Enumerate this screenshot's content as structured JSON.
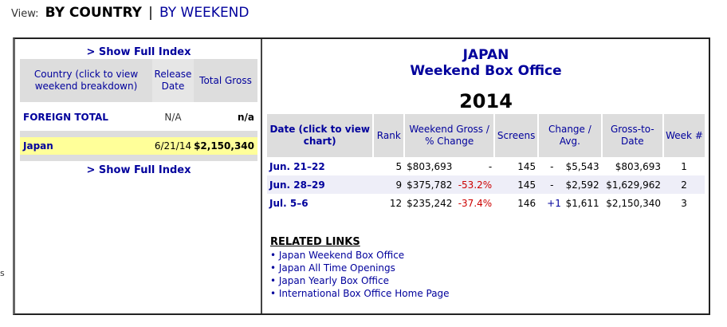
{
  "nav": {
    "view_label": "View:",
    "current": "BY COUNTRY",
    "separator": "|",
    "alternate": "BY WEEKEND"
  },
  "edge_text": "s",
  "left": {
    "show_index": "> Show Full Index",
    "headers": {
      "country": "Country (click to view weekend breakdown)",
      "release": "Release Date",
      "total": "Total Gross"
    },
    "foreign_total": {
      "country": "FOREIGN TOTAL",
      "release": "N/A",
      "total": "n/a"
    },
    "rows": [
      {
        "country": "Japan",
        "release": "6/21/14",
        "total": "$2,150,340"
      }
    ]
  },
  "right": {
    "title": "JAPAN",
    "subtitle": "Weekend Box Office",
    "year": "2014",
    "headers": {
      "date": "Date (click to view chart)",
      "rank": "Rank",
      "gross": "Weekend Gross / % Change",
      "screens": "Screens",
      "change": "Change / Avg.",
      "gtd": "Gross-to-Date",
      "week": "Week #"
    },
    "rows": [
      {
        "date": "Jun. 21–22",
        "rank": "5",
        "gross": "$803,693",
        "pct": "-",
        "screens": "145",
        "change": "-",
        "avg": "$5,543",
        "gtd": "$803,693",
        "week": "1"
      },
      {
        "date": "Jun. 28–29",
        "rank": "9",
        "gross": "$375,782",
        "pct": "-53.2%",
        "screens": "145",
        "change": "-",
        "avg": "$2,592",
        "gtd": "$1,629,962",
        "week": "2"
      },
      {
        "date": "Jul. 5–6",
        "rank": "12",
        "gross": "$235,242",
        "pct": "-37.4%",
        "screens": "146",
        "change": "+1",
        "avg": "$1,611",
        "gtd": "$2,150,340",
        "week": "3"
      }
    ],
    "related_heading": "RELATED LINKS",
    "links": [
      "• Japan Weekend Box Office",
      "• Japan All Time Openings",
      "• Japan Yearly Box Office",
      "• International Box Office Home Page"
    ]
  }
}
